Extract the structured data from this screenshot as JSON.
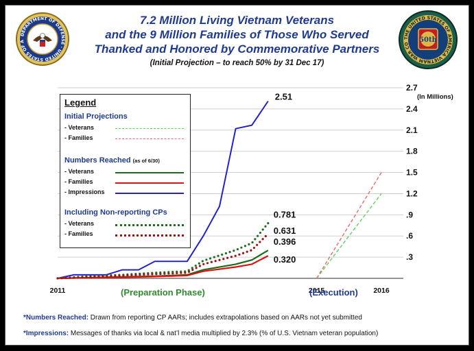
{
  "header": {
    "title_line1": "7.2 Million Living Vietnam Veterans",
    "title_line2": "and the 9 Million Families of Those Who Served",
    "title_line3": "Thanked and Honored by Commemorative Partners",
    "subtitle": "(Initial Projection – to reach 50% by 31 Dec 17)"
  },
  "seals": {
    "left_text": "DEPARTMENT OF DEFENSE · UNITED STATES OF AMERICA",
    "right_text": "THE UNITED STATES OF AMERICA VIETNAM WAR COMMEMORATION",
    "right_center": "50th"
  },
  "legend": {
    "title": "Legend",
    "group1": "Initial Projections",
    "veterans": "- Veterans",
    "families": "- Families",
    "group2": "Numbers Reached",
    "group2_note": "(as of 6/30)",
    "impressions": "- Impressions",
    "group3": "Including  Non-reporting  CPs"
  },
  "notes": {
    "note1_key": "*Numbers Reached:",
    "note1_text": " Drawn from reporting CP AARs; includes extrapolations based on AARs not yet submitted",
    "note2_key": "*Impressions:",
    "note2_text": " Messages of thanks via local & nat’l media multiplied by 2.3% (% of U.S. Vietnam veteran population)"
  },
  "colors": {
    "title_blue": "#1f3a93",
    "impressions": "#2222cc",
    "veterans": "#1a6b1a",
    "families": "#dd1111",
    "proj_veterans": "#5fcf5f",
    "proj_families": "#e86a6a",
    "nonrep_veterans": "#1e6e1e",
    "nonrep_families": "#a01010",
    "phase_green": "#2e8b2e",
    "phase_blue": "#1f3a93"
  },
  "chart_data": {
    "type": "line",
    "x_start": 2011,
    "x_end": 2016,
    "ylim": [
      0,
      2.7
    ],
    "y_ticks": [
      ".3",
      ".6",
      ".9",
      "1.2",
      "1.5",
      "1.8",
      "2.1",
      "2.4",
      "2.7"
    ],
    "y_tick_values": [
      0.3,
      0.6,
      0.9,
      1.2,
      1.5,
      1.8,
      2.1,
      2.4,
      2.7
    ],
    "y_unit_label": "(In Millions)",
    "x_labels": [
      {
        "label": "2011",
        "x": 2011.0
      },
      {
        "label": "2015",
        "x": 2015.0
      },
      {
        "label": "2016",
        "x": 2016.0
      }
    ],
    "phase_preparation": "(Preparation Phase)",
    "phase_execution": "(Execution)",
    "series": [
      {
        "name": "Impressions",
        "key": "impressions",
        "style": "solid",
        "width": 2,
        "points": [
          [
            2011.0,
            0
          ],
          [
            2011.25,
            0.05
          ],
          [
            2011.75,
            0.05
          ],
          [
            2012.0,
            0.12
          ],
          [
            2012.25,
            0.12
          ],
          [
            2012.5,
            0.24
          ],
          [
            2013.0,
            0.24
          ],
          [
            2013.25,
            0.6
          ],
          [
            2013.5,
            1.02
          ],
          [
            2013.75,
            2.12
          ],
          [
            2014.0,
            2.17
          ],
          [
            2014.25,
            2.51
          ]
        ],
        "end_label": "2.51"
      },
      {
        "name": "Veterans",
        "key": "veterans",
        "style": "solid",
        "width": 2.2,
        "points": [
          [
            2011.0,
            0
          ],
          [
            2011.5,
            0.01
          ],
          [
            2012.0,
            0.02
          ],
          [
            2012.5,
            0.03
          ],
          [
            2013.0,
            0.05
          ],
          [
            2013.25,
            0.12
          ],
          [
            2013.75,
            0.2
          ],
          [
            2014.0,
            0.26
          ],
          [
            2014.25,
            0.396
          ]
        ],
        "end_label": "0.396"
      },
      {
        "name": "Families",
        "key": "families",
        "style": "solid",
        "width": 2.2,
        "points": [
          [
            2011.0,
            0
          ],
          [
            2011.5,
            0.01
          ],
          [
            2012.0,
            0.015
          ],
          [
            2012.5,
            0.025
          ],
          [
            2013.0,
            0.04
          ],
          [
            2013.25,
            0.1
          ],
          [
            2013.75,
            0.16
          ],
          [
            2014.0,
            0.2
          ],
          [
            2014.25,
            0.32
          ]
        ],
        "end_label": "0.320"
      },
      {
        "name": "Veterans (incl. non-reporting CPs)",
        "key": "nonrep_veterans",
        "style": "dotted",
        "width": 3.2,
        "points": [
          [
            2011.0,
            0
          ],
          [
            2011.5,
            0.03
          ],
          [
            2012.0,
            0.05
          ],
          [
            2012.5,
            0.08
          ],
          [
            2013.0,
            0.1
          ],
          [
            2013.25,
            0.25
          ],
          [
            2013.75,
            0.4
          ],
          [
            2014.0,
            0.5
          ],
          [
            2014.25,
            0.781
          ]
        ],
        "end_label": "0.781"
      },
      {
        "name": "Families (incl. non-reporting CPs)",
        "key": "nonrep_families",
        "style": "dotted",
        "width": 3.2,
        "points": [
          [
            2011.0,
            0
          ],
          [
            2011.5,
            0.02
          ],
          [
            2012.0,
            0.04
          ],
          [
            2012.5,
            0.06
          ],
          [
            2013.0,
            0.08
          ],
          [
            2013.25,
            0.2
          ],
          [
            2013.75,
            0.32
          ],
          [
            2014.0,
            0.4
          ],
          [
            2014.25,
            0.631
          ]
        ],
        "end_label": "0.631"
      },
      {
        "name": "Veterans (initial projection)",
        "key": "proj_veterans",
        "style": "dashed",
        "width": 1.4,
        "points": [
          [
            2015.0,
            0
          ],
          [
            2016.0,
            1.2
          ]
        ]
      },
      {
        "name": "Families (initial projection)",
        "key": "proj_families",
        "style": "dashed",
        "width": 1.4,
        "points": [
          [
            2015.0,
            0
          ],
          [
            2016.0,
            1.5
          ]
        ]
      }
    ]
  }
}
